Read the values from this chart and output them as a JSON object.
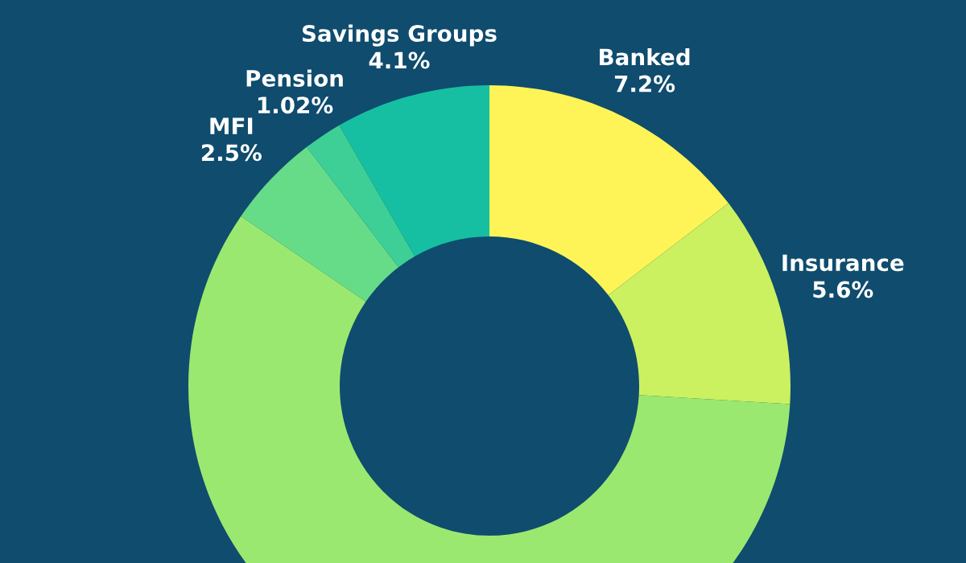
{
  "chart_data": {
    "type": "donut",
    "categories": [
      "Banked",
      "Insurance",
      null,
      "MFI",
      "Pension",
      "Savings Groups"
    ],
    "values": [
      7.2,
      5.6,
      28.9,
      2.5,
      1.02,
      4.1
    ],
    "value_labels": [
      "7.2%",
      "5.6%",
      null,
      "2.5%",
      "1.02%",
      "4.1%"
    ],
    "colors": [
      "#fff457",
      "#cbf060",
      "#9be870",
      "#66dc88",
      "#3ecf96",
      "#16bfa2"
    ],
    "legend": false
  }
}
